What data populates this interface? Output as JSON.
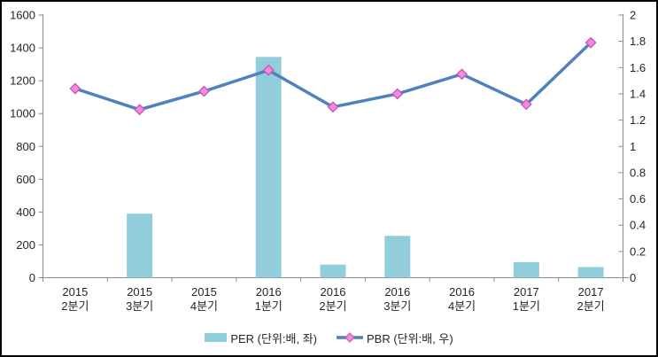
{
  "frame": {
    "background": "#ffffff",
    "border_color": "#000000",
    "axis_color": "#8a8a8a",
    "text_color": "#262626"
  },
  "chart_data": {
    "type": "bar+line",
    "categories": [
      "2015 2분기",
      "2015 3분기",
      "2015 4분기",
      "2016 1분기",
      "2016 2분기",
      "2016 3분기",
      "2016 4분기",
      "2017 1분기",
      "2017 2분기"
    ],
    "category_label_lines": [
      [
        "2015",
        "2분기"
      ],
      [
        "2015",
        "3분기"
      ],
      [
        "2015",
        "4분기"
      ],
      [
        "2016",
        "1분기"
      ],
      [
        "2016",
        "2분기"
      ],
      [
        "2016",
        "3분기"
      ],
      [
        "2016",
        "4분기"
      ],
      [
        "2017",
        "1분기"
      ],
      [
        "2017",
        "2분기"
      ]
    ],
    "series": [
      {
        "name": "PER (단위:배, 좌)",
        "type": "bar",
        "axis": "left",
        "color": "#92CDDC",
        "values": [
          0,
          390,
          0,
          1345,
          80,
          255,
          0,
          95,
          65
        ]
      },
      {
        "name": "PBR (단위:배, 우)",
        "type": "line",
        "axis": "right",
        "color": "#4F81BD",
        "marker": "diamond",
        "marker_fill": "#F08BDF",
        "marker_stroke": "#CB58B5",
        "values": [
          1.44,
          1.28,
          1.42,
          1.58,
          1.3,
          1.4,
          1.55,
          1.32,
          1.79
        ]
      }
    ],
    "left_axis": {
      "min": 0,
      "max": 1600,
      "step": 200,
      "ticks": [
        "0",
        "200",
        "400",
        "600",
        "800",
        "1000",
        "1200",
        "1400",
        "1600"
      ]
    },
    "right_axis": {
      "min": 0,
      "max": 2,
      "step": 0.2,
      "ticks": [
        "0",
        "0.2",
        "0.4",
        "0.6",
        "0.8",
        "1",
        "1.2",
        "1.4",
        "1.6",
        "1.8",
        "2"
      ]
    },
    "grid": false,
    "legend_position": "bottom"
  }
}
